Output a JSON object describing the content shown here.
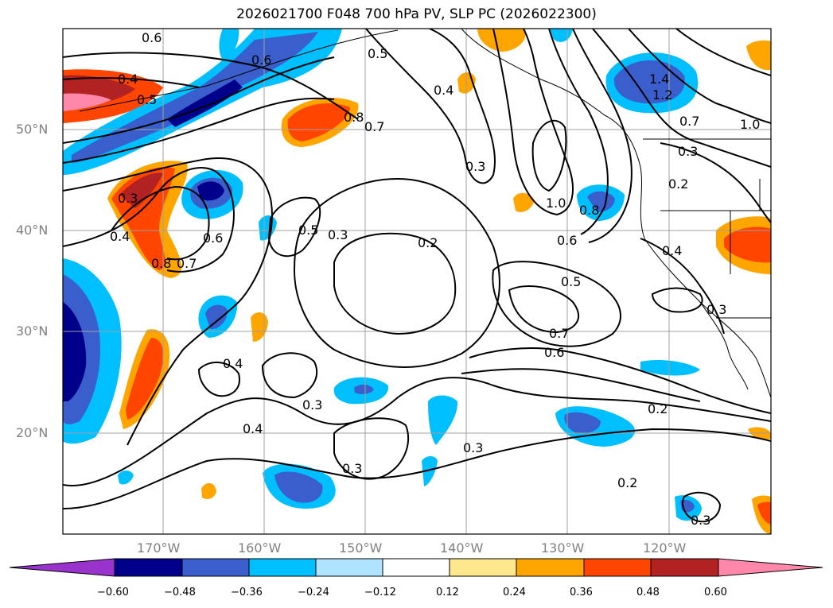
{
  "title": "2026021700 F048 700 hPa PV, SLP PC (2026022300)",
  "map": {
    "lat_labels": [
      "50°N",
      "40°N",
      "30°N",
      "20°N"
    ],
    "lon_labels": [
      "170°W",
      "160°W",
      "150°W",
      "140°W",
      "130°W",
      "120°W"
    ],
    "contour_labels": [
      "0.6",
      "0.4",
      "0.5",
      "0.6",
      "0.5",
      "0.4",
      "0.8",
      "0.7",
      "0.3",
      "0.3",
      "1.0",
      "0.8",
      "0.6",
      "1.4",
      "1.2",
      "0.7",
      "1.0",
      "0.3",
      "0.2",
      "0.5",
      "0.3",
      "0.2",
      "0.4",
      "0.8",
      "0.7",
      "0.6",
      "0.3",
      "0.5",
      "0.4",
      "0.3",
      "0.7",
      "0.6",
      "0.2",
      "0.4",
      "0.3",
      "0.3",
      "0.4",
      "0.2",
      "0.3"
    ]
  },
  "colorbar": {
    "labels": [
      "−0.60",
      "−0.48",
      "−0.36",
      "−0.24",
      "−0.12",
      "0.12",
      "0.24",
      "0.36",
      "0.48",
      "0.60"
    ],
    "colors": [
      "#9933cc",
      "#00008b",
      "#3a5fcd",
      "#00bfff",
      "#aee4ff",
      "#ffffff",
      "#ffe88c",
      "#ffa500",
      "#ff4500",
      "#b22222",
      "#ff88aa"
    ]
  }
}
